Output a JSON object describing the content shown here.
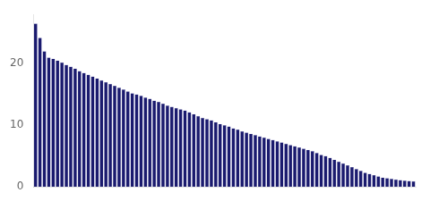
{
  "chart_data": {
    "type": "bar",
    "categories": [
      null,
      null,
      null,
      null,
      null,
      null,
      null,
      null,
      null,
      null,
      null,
      null,
      null,
      null,
      null,
      null,
      null,
      null,
      null,
      null,
      null,
      null,
      null,
      null,
      null,
      null,
      null,
      null,
      null,
      null,
      null,
      null,
      null,
      null,
      null,
      null,
      null,
      null,
      null,
      null,
      null,
      null,
      null,
      null,
      null,
      null,
      null,
      null,
      null,
      null,
      null,
      null,
      null,
      null,
      null,
      null,
      null,
      null,
      null,
      null,
      null,
      null,
      null,
      null,
      null,
      null,
      null,
      null,
      null,
      null,
      null,
      null,
      null,
      null,
      null,
      null,
      null,
      null,
      null,
      null,
      null,
      null,
      null,
      null,
      null,
      null,
      null
    ],
    "values": [
      26.5,
      24.2,
      22.0,
      21.0,
      20.8,
      20.5,
      20.2,
      19.8,
      19.5,
      19.2,
      18.8,
      18.5,
      18.2,
      17.9,
      17.6,
      17.3,
      17.0,
      16.7,
      16.4,
      16.1,
      15.8,
      15.5,
      15.2,
      15.0,
      14.8,
      14.5,
      14.3,
      14.0,
      13.8,
      13.5,
      13.2,
      13.0,
      12.8,
      12.6,
      12.4,
      12.1,
      11.8,
      11.5,
      11.2,
      11.0,
      10.8,
      10.5,
      10.2,
      10.0,
      9.8,
      9.5,
      9.3,
      9.0,
      8.8,
      8.6,
      8.4,
      8.2,
      8.0,
      7.8,
      7.6,
      7.4,
      7.2,
      7.0,
      6.8,
      6.6,
      6.4,
      6.2,
      6.0,
      5.8,
      5.5,
      5.2,
      5.0,
      4.7,
      4.4,
      4.1,
      3.8,
      3.5,
      3.2,
      2.9,
      2.6,
      2.3,
      2.1,
      1.9,
      1.7,
      1.5,
      1.4,
      1.3,
      1.2,
      1.1,
      1.0,
      0.95,
      0.9
    ],
    "color": "#1a1a6e",
    "ylim": [
      0,
      28
    ],
    "yticks": [
      0,
      10,
      20
    ],
    "grid": false,
    "tick_labels": "y"
  }
}
